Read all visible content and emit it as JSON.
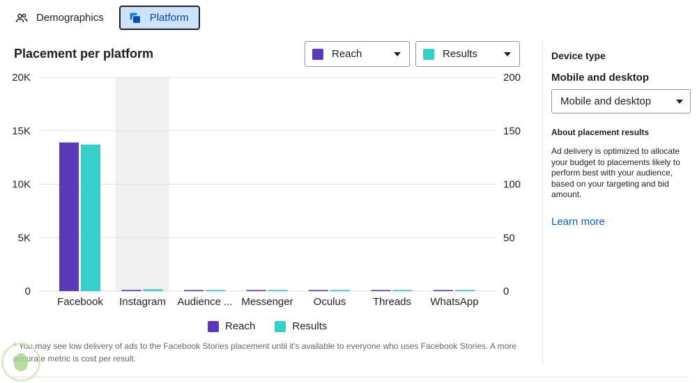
{
  "tabs": [
    {
      "label": "Demographics",
      "icon": "people-icon",
      "active": false
    },
    {
      "label": "Platform",
      "icon": "platform-icon",
      "active": true
    }
  ],
  "chart_title": "Placement per platform",
  "metric_selectors": [
    {
      "label": "Reach",
      "color": "#5b3ab7"
    },
    {
      "label": "Results",
      "color": "#36cfc9"
    }
  ],
  "side_panel": {
    "heading": "Device type",
    "subheading": "Mobile and desktop",
    "select_value": "Mobile and desktop",
    "about_heading": "About placement results",
    "about_text": "Ad delivery is optimized to allocate your budget to placements likely to perform best with your audience, based on your targeting and bid amount.",
    "learn_more": "Learn more"
  },
  "footnote": "* You may see low delivery of ads to the Facebook Stories placement until it's available to everyone who uses Facebook Stories. A more accurate metric is cost per result.",
  "colors": {
    "reach": "#5b3ab7",
    "results": "#36cfc9",
    "highlight": "#f0f0f0",
    "grid": "#dddfe2"
  },
  "chart_data": {
    "type": "bar",
    "categories": [
      "Facebook",
      "Instagram",
      "Audience ...",
      "Messenger",
      "Oculus",
      "Threads",
      "WhatsApp"
    ],
    "highlighted_category": "Instagram",
    "series": [
      {
        "name": "Reach",
        "axis": "left",
        "values": [
          13900,
          100,
          30,
          30,
          30,
          30,
          30
        ]
      },
      {
        "name": "Results",
        "axis": "right",
        "values": [
          137,
          1.5,
          0.3,
          0.3,
          0.3,
          0.3,
          0.3
        ]
      }
    ],
    "y_left": {
      "ticks": [
        "0",
        "5K",
        "10K",
        "15K",
        "20K"
      ],
      "lim": [
        0,
        20000
      ]
    },
    "y_right": {
      "ticks": [
        "0",
        "50",
        "100",
        "150",
        "200"
      ],
      "lim": [
        0,
        200
      ]
    },
    "legend": [
      "Reach",
      "Results"
    ],
    "legend_position": "bottom",
    "grid": true
  }
}
